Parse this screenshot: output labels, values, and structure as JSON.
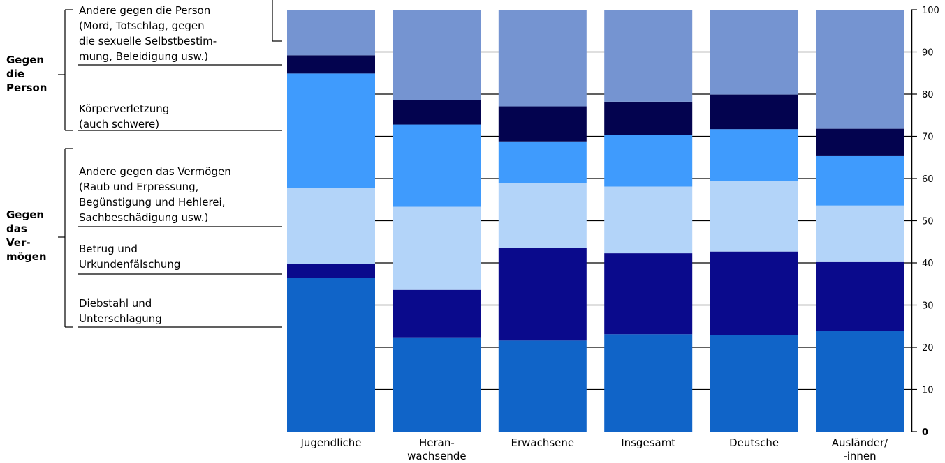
{
  "chart_data": {
    "type": "bar",
    "stacked": true,
    "categories": [
      "Jugendliche",
      "Heran-\nwachsende",
      "Erwachsene",
      "Insgesamt",
      "Deutsche",
      "Ausländer/\n-innen"
    ],
    "series": [
      {
        "name": "Diebstahl und\nUnterschlagung",
        "color": "#1064c8",
        "values": [
          36.5,
          22.2,
          21.6,
          23.1,
          22.9,
          23.8
        ]
      },
      {
        "name": "Betrug und\nUrkundenfälschung",
        "color": "#0a0a8c",
        "values": [
          3.2,
          11.4,
          21.9,
          19.2,
          19.8,
          16.4
        ]
      },
      {
        "name": "Andere gegen das Vermögen\n(Raub und Erpressung,\nBegünstigung und Hehlerei,\nSachbeschädigung usw.)",
        "color": "#b3d4f9",
        "values": [
          18.0,
          19.7,
          15.5,
          15.8,
          16.7,
          13.4
        ]
      },
      {
        "name": "Körperverletzung\n(auch schwere)",
        "color": "#3f9bfd",
        "values": [
          27.2,
          19.5,
          9.8,
          12.2,
          12.3,
          11.7
        ]
      },
      {
        "name": "Andere gegen die Person\n(Mord, Totschlag, gegen\ndie sexuelle Selbstbestim-\nmung, Beleidigung usw.)",
        "color": "#03034f",
        "values": [
          4.3,
          5.8,
          8.3,
          7.9,
          8.2,
          6.5
        ]
      },
      {
        "name": "",
        "color": "#7594d1",
        "values": [
          10.8,
          21.4,
          22.9,
          21.8,
          20.1,
          28.2
        ]
      }
    ],
    "ylim": [
      0,
      100
    ],
    "yticks": [
      "0",
      "10",
      "20",
      "30",
      "40",
      "50",
      "60",
      "70",
      "80",
      "90",
      "100"
    ],
    "groups": {
      "person": "Gegen\ndie\nPerson",
      "vermoegen": "Gegen\ndas\nVer-\nmögen"
    }
  }
}
